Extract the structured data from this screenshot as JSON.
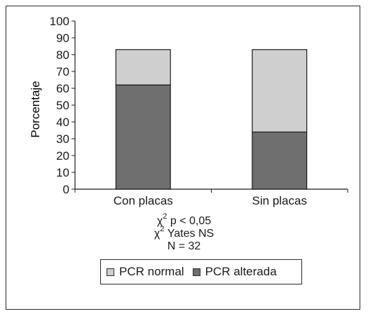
{
  "chart_data": {
    "type": "bar",
    "stacked": true,
    "categories": [
      "Con placas",
      "Sin placas"
    ],
    "series": [
      {
        "name": "PCR alterada",
        "values": [
          62,
          34
        ],
        "color": "#6f6f6f"
      },
      {
        "name": "PCR normal",
        "values": [
          21,
          49
        ],
        "color": "#cfcfcf"
      }
    ],
    "ylabel": "Porcentaje",
    "xlabel": "",
    "ylim": [
      0,
      100
    ],
    "yticks": [
      "0",
      "10",
      "20",
      "30",
      "40",
      "50",
      "60",
      "70",
      "80",
      "90",
      "100"
    ],
    "grid": false,
    "legend_position": "bottom"
  },
  "stats": {
    "chi_symbol": "χ",
    "exponent": "2",
    "line1_text": " p < 0,05",
    "line2_text": " Yates NS",
    "line3": "N = 32"
  },
  "legend": {
    "normal_label": "PCR normal",
    "alterada_label": "PCR alterada"
  }
}
